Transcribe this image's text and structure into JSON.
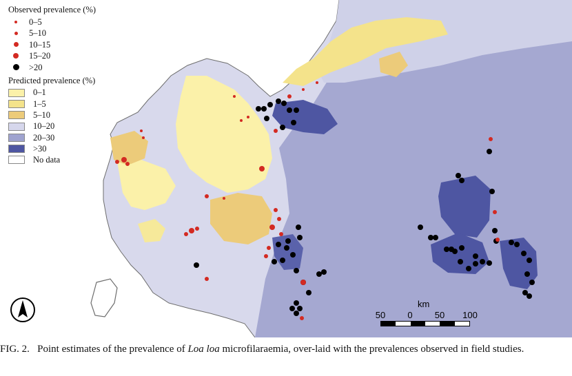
{
  "legend": {
    "observed_title": "Observed prevalence (%)",
    "observed_classes": [
      {
        "label": "0–5",
        "color": "#d32a22"
      },
      {
        "label": "5–10",
        "color": "#d32a22"
      },
      {
        "label": "10–15",
        "color": "#d32a22"
      },
      {
        "label": "15–20",
        "color": "#d32a22"
      },
      {
        "label": ">20",
        "color": "#000000"
      }
    ],
    "predicted_title": "Predicted prevalence (%)",
    "predicted_classes": [
      {
        "label": "0–1",
        "color": "#fbf1a9"
      },
      {
        "label": "1–5",
        "color": "#f4e38b"
      },
      {
        "label": "5–10",
        "color": "#eccb7a"
      },
      {
        "label": "10–20",
        "color": "#d6d7ec"
      },
      {
        "label": "20–30",
        "color": "#9fa3cf"
      },
      {
        "label": ">30",
        "color": "#4e56a2"
      },
      {
        "label": "No data",
        "color": "#ffffff"
      }
    ]
  },
  "scale_bar": {
    "unit": "km",
    "ticks": [
      "50",
      "0",
      "50",
      "100"
    ]
  },
  "north_arrow_icon": "north-arrow-icon",
  "caption": {
    "figure_label": "FIG. 2.",
    "text_before": "Point estimates of the prevalence of ",
    "species": "Loa loa",
    "text_after": " microfilaraemia, over-laid with the prevalences observed in field studies."
  }
}
